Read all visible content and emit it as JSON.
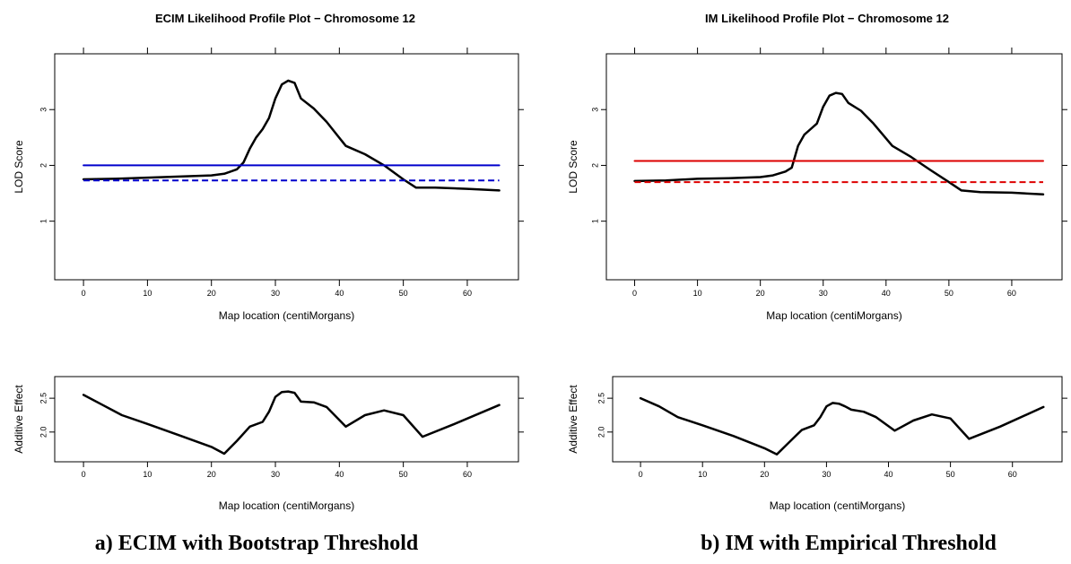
{
  "captions": [
    "a) ECIM with Bootstrap Threshold",
    "b) IM with Empirical Threshold"
  ],
  "chart_data": [
    {
      "id": "ecim-lod",
      "type": "line",
      "title": "ECIM Likelihood Profile Plot  − Chromosome 12",
      "xlabel": "Map location (centiMorgans)",
      "ylabel": "LOD Score",
      "xlim": [
        -4.5,
        68
      ],
      "ylim": [
        -0.05,
        4
      ],
      "xticks": [
        0,
        10,
        20,
        30,
        40,
        50,
        60
      ],
      "yticks": [
        1,
        2,
        3
      ],
      "grid": false,
      "series": [
        {
          "kind": "profile",
          "color": "#000000",
          "width": 2.5,
          "dash": "",
          "x": [
            0,
            5,
            10,
            15,
            20,
            22,
            24,
            25,
            26,
            27,
            28,
            29,
            30,
            31,
            32,
            33,
            34,
            36,
            38,
            41,
            44,
            47,
            50,
            52,
            55,
            60,
            65
          ],
          "y": [
            1.75,
            1.76,
            1.78,
            1.8,
            1.82,
            1.85,
            1.93,
            2.05,
            2.3,
            2.5,
            2.65,
            2.85,
            3.2,
            3.45,
            3.52,
            3.48,
            3.2,
            3.02,
            2.78,
            2.35,
            2.2,
            2.0,
            1.75,
            1.6,
            1.6,
            1.58,
            1.55
          ]
        },
        {
          "kind": "threshold-solid",
          "color": "#0000cc",
          "width": 2,
          "dash": "",
          "x": [
            0,
            65
          ],
          "y": [
            2.0,
            2.0
          ]
        },
        {
          "kind": "threshold-dashed",
          "color": "#0000cc",
          "width": 2,
          "dash": "7,4",
          "x": [
            0,
            65
          ],
          "y": [
            1.73,
            1.73
          ]
        }
      ]
    },
    {
      "id": "ecim-effect",
      "type": "line",
      "title": "",
      "xlabel": "Map location (centiMorgans)",
      "ylabel": "Additive Effect",
      "xlim": [
        -4.5,
        68
      ],
      "ylim": [
        1.56,
        2.82
      ],
      "xticks": [
        0,
        10,
        20,
        30,
        40,
        50,
        60
      ],
      "yticks": [
        2.0,
        2.5
      ],
      "yticklabels": [
        "2.0",
        "2.5"
      ],
      "grid": false,
      "series": [
        {
          "kind": "effect",
          "color": "#000000",
          "width": 2.5,
          "dash": "",
          "x": [
            0,
            3,
            6,
            10,
            15,
            20,
            22,
            24,
            26,
            28,
            29,
            30,
            31,
            32,
            33,
            34,
            36,
            38,
            41,
            44,
            47,
            50,
            53,
            58,
            65
          ],
          "y": [
            2.55,
            2.4,
            2.25,
            2.12,
            1.95,
            1.78,
            1.68,
            1.87,
            2.08,
            2.15,
            2.3,
            2.52,
            2.59,
            2.6,
            2.58,
            2.45,
            2.44,
            2.37,
            2.08,
            2.25,
            2.32,
            2.25,
            1.93,
            2.12,
            2.4
          ]
        }
      ]
    },
    {
      "id": "im-lod",
      "type": "line",
      "title": "IM Likelihood Profile Plot  − Chromosome 12",
      "xlabel": "Map location (centiMorgans)",
      "ylabel": "LOD Score",
      "xlim": [
        -4.5,
        68
      ],
      "ylim": [
        -0.05,
        4
      ],
      "xticks": [
        0,
        10,
        20,
        30,
        40,
        50,
        60
      ],
      "yticks": [
        1,
        2,
        3
      ],
      "grid": false,
      "series": [
        {
          "kind": "profile",
          "color": "#000000",
          "width": 2.5,
          "dash": "",
          "x": [
            0,
            5,
            10,
            15,
            20,
            22,
            24,
            25,
            26,
            27,
            28,
            29,
            30,
            31,
            32,
            33,
            34,
            36,
            38,
            41,
            44,
            47,
            50,
            52,
            55,
            60,
            65
          ],
          "y": [
            1.72,
            1.73,
            1.76,
            1.77,
            1.79,
            1.82,
            1.89,
            1.96,
            2.35,
            2.55,
            2.65,
            2.75,
            3.05,
            3.25,
            3.3,
            3.28,
            3.12,
            2.98,
            2.75,
            2.35,
            2.15,
            1.92,
            1.7,
            1.55,
            1.52,
            1.51,
            1.48
          ]
        },
        {
          "kind": "threshold-solid",
          "color": "#dd0000",
          "width": 2,
          "dash": "",
          "x": [
            0,
            65
          ],
          "y": [
            2.08,
            2.08
          ]
        },
        {
          "kind": "threshold-dashed",
          "color": "#dd0000",
          "width": 2,
          "dash": "7,4",
          "x": [
            0,
            65
          ],
          "y": [
            1.7,
            1.7
          ]
        }
      ]
    },
    {
      "id": "im-effect",
      "type": "line",
      "title": "",
      "xlabel": "Map location (centiMorgans)",
      "ylabel": "Additive Effect",
      "xlim": [
        -4.5,
        68
      ],
      "ylim": [
        1.56,
        2.82
      ],
      "xticks": [
        0,
        10,
        20,
        30,
        40,
        50,
        60
      ],
      "yticks": [
        2.0,
        2.5
      ],
      "yticklabels": [
        "2.0",
        "2.5"
      ],
      "grid": false,
      "series": [
        {
          "kind": "effect",
          "color": "#000000",
          "width": 2.5,
          "dash": "",
          "x": [
            0,
            3,
            6,
            10,
            15,
            20,
            22,
            24,
            26,
            28,
            29,
            30,
            31,
            32,
            33,
            34,
            36,
            38,
            41,
            44,
            47,
            50,
            53,
            58,
            65
          ],
          "y": [
            2.5,
            2.38,
            2.22,
            2.1,
            1.94,
            1.76,
            1.67,
            1.85,
            2.03,
            2.1,
            2.22,
            2.38,
            2.43,
            2.42,
            2.38,
            2.33,
            2.3,
            2.22,
            2.02,
            2.17,
            2.26,
            2.2,
            1.9,
            2.08,
            2.37
          ]
        }
      ]
    }
  ]
}
